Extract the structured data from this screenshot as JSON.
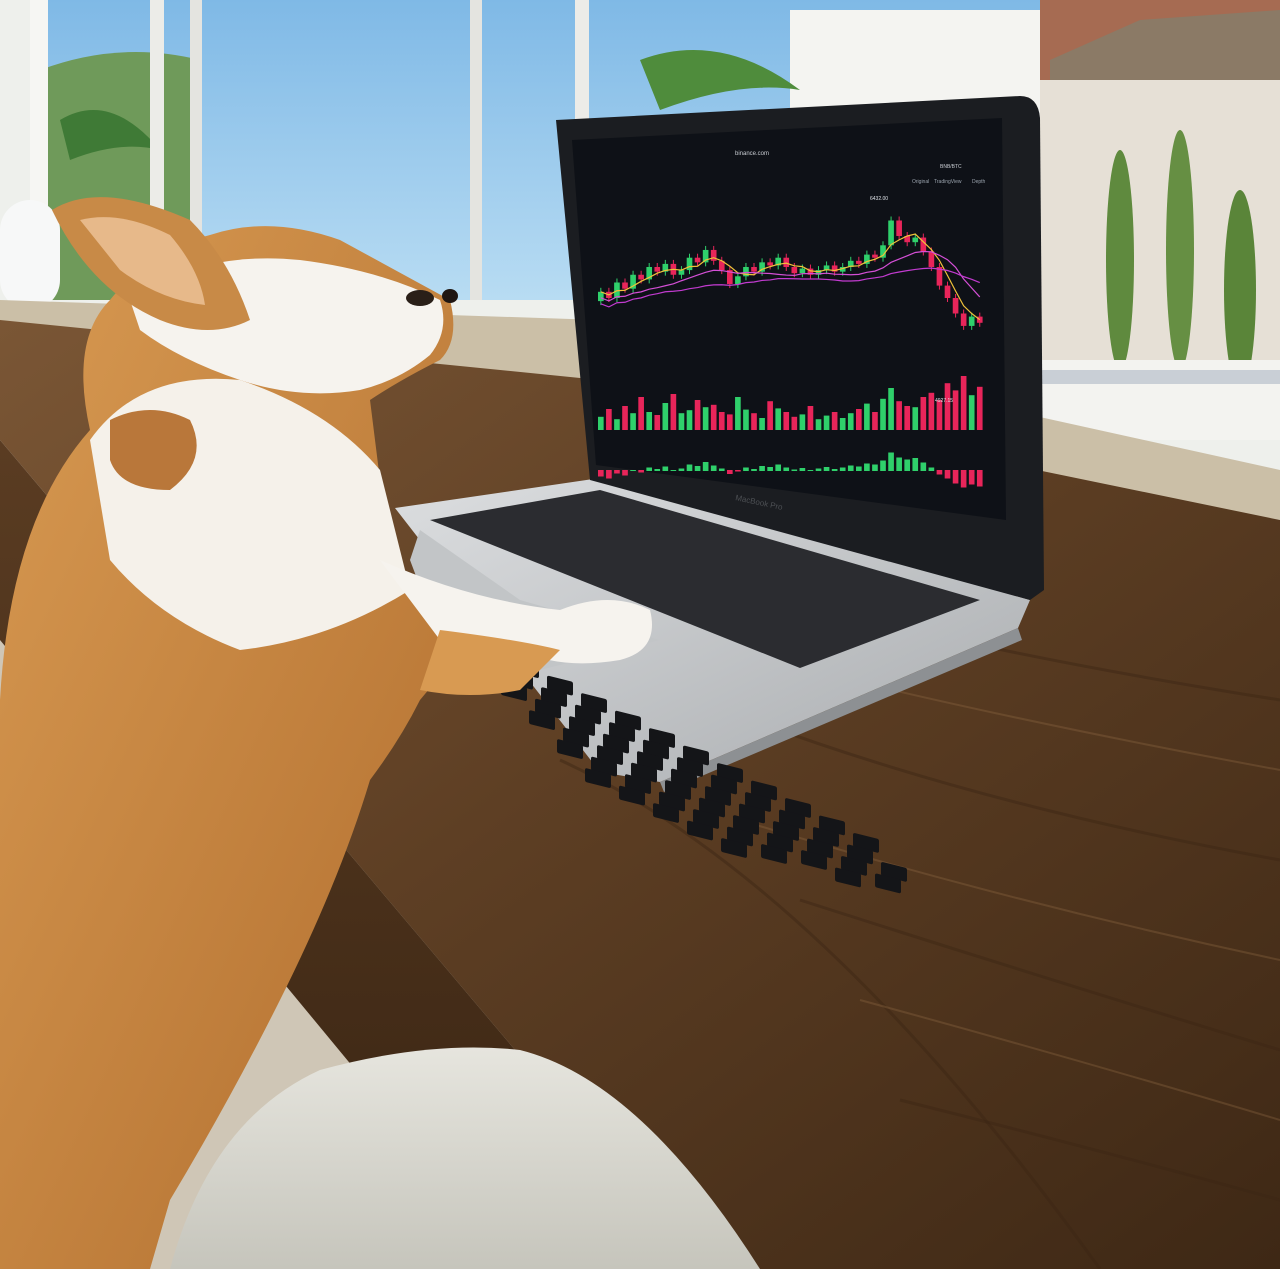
{
  "photo": {
    "subject": "chihuahua-at-laptop",
    "colors": {
      "sky": "#8fc3ea",
      "hills": "#6f9a5a",
      "wall": "#f1f2ee",
      "roof": "#d8d1c3",
      "granite": "#cbbfa7",
      "desk": "#6b4a2e",
      "desk_dark": "#4a321d",
      "laptop_body": "#c9cbcd",
      "screen": "#0e1117",
      "keys": "#1b1c1f",
      "dog_tan": "#c98a44",
      "dog_white": "#f5f1ea",
      "chair": "#dcdbd2"
    }
  },
  "laptop": {
    "brand_label": "MacBook Pro",
    "screen": {
      "url": "binance.com",
      "pair_label": "BNB/BTC",
      "view_tabs": [
        "Original",
        "TradingView",
        "Depth"
      ],
      "price_labels": [
        "6432.00",
        "4927.15"
      ],
      "chart_colors": {
        "up": "#2fd06b",
        "down": "#e8255a",
        "ma1": "#f0c23a",
        "ma2": "#d44fd6",
        "ma3": "#c23bd0"
      },
      "candles": [
        {
          "o": 38,
          "c": 44
        },
        {
          "o": 44,
          "c": 40
        },
        {
          "o": 40,
          "c": 50
        },
        {
          "o": 50,
          "c": 46
        },
        {
          "o": 46,
          "c": 55
        },
        {
          "o": 55,
          "c": 52
        },
        {
          "o": 52,
          "c": 60
        },
        {
          "o": 60,
          "c": 57
        },
        {
          "o": 57,
          "c": 62
        },
        {
          "o": 62,
          "c": 55
        },
        {
          "o": 55,
          "c": 58
        },
        {
          "o": 58,
          "c": 66
        },
        {
          "o": 66,
          "c": 63
        },
        {
          "o": 63,
          "c": 71
        },
        {
          "o": 71,
          "c": 64
        },
        {
          "o": 64,
          "c": 58
        },
        {
          "o": 58,
          "c": 49
        },
        {
          "o": 49,
          "c": 54
        },
        {
          "o": 54,
          "c": 60
        },
        {
          "o": 60,
          "c": 57
        },
        {
          "o": 57,
          "c": 63
        },
        {
          "o": 63,
          "c": 61
        },
        {
          "o": 61,
          "c": 66
        },
        {
          "o": 66,
          "c": 60
        },
        {
          "o": 60,
          "c": 56
        },
        {
          "o": 56,
          "c": 59
        },
        {
          "o": 59,
          "c": 55
        },
        {
          "o": 55,
          "c": 58
        },
        {
          "o": 58,
          "c": 61
        },
        {
          "o": 61,
          "c": 57
        },
        {
          "o": 57,
          "c": 60
        },
        {
          "o": 60,
          "c": 64
        },
        {
          "o": 64,
          "c": 62
        },
        {
          "o": 62,
          "c": 68
        },
        {
          "o": 68,
          "c": 66
        },
        {
          "o": 66,
          "c": 74
        },
        {
          "o": 74,
          "c": 90
        },
        {
          "o": 90,
          "c": 80
        },
        {
          "o": 80,
          "c": 76
        },
        {
          "o": 76,
          "c": 79
        },
        {
          "o": 79,
          "c": 70
        },
        {
          "o": 70,
          "c": 60
        },
        {
          "o": 60,
          "c": 48
        },
        {
          "o": 48,
          "c": 40
        },
        {
          "o": 40,
          "c": 30
        },
        {
          "o": 30,
          "c": 22
        },
        {
          "o": 22,
          "c": 28
        },
        {
          "o": 28,
          "c": 24
        }
      ],
      "volumes": [
        22,
        35,
        18,
        40,
        28,
        55,
        30,
        25,
        45,
        60,
        28,
        33,
        50,
        38,
        42,
        30,
        26,
        55,
        34,
        28,
        20,
        48,
        36,
        30,
        22,
        26,
        40,
        18,
        24,
        30,
        20,
        28,
        35,
        44,
        30,
        52,
        70,
        48,
        40,
        38,
        55,
        62,
        50,
        78,
        66,
        90,
        58,
        72
      ]
    }
  }
}
